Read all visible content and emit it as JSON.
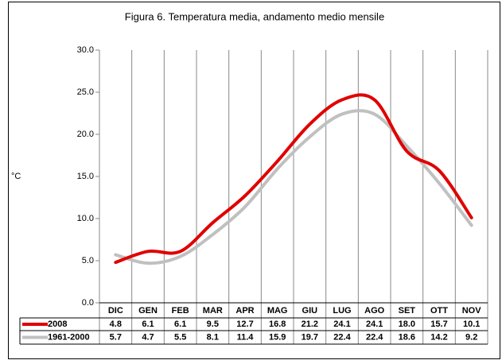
{
  "chart_data": {
    "type": "line",
    "title": "Figura 6. Temperatura media, andamento medio mensile",
    "y_label": "°C",
    "categories": [
      "DIC",
      "GEN",
      "FEB",
      "MAR",
      "APR",
      "MAG",
      "GIU",
      "LUG",
      "AGO",
      "SET",
      "OTT",
      "NOV"
    ],
    "series": [
      {
        "name": "2008",
        "color": "#e00000",
        "values": [
          4.8,
          6.1,
          6.1,
          9.5,
          12.7,
          16.8,
          21.2,
          24.1,
          24.1,
          18.0,
          15.7,
          10.1
        ],
        "value_labels": [
          "4.8",
          "6.1",
          "6.1",
          "9.5",
          "12.7",
          "16.8",
          "21.2",
          "24.1",
          "24.1",
          "18.0",
          "15.7",
          "10.1"
        ]
      },
      {
        "name": "1961-2000",
        "color": "#c0c0c0",
        "values": [
          5.7,
          4.7,
          5.5,
          8.1,
          11.4,
          15.9,
          19.7,
          22.4,
          22.4,
          18.6,
          14.2,
          9.2
        ]
      }
    ],
    "ylim": [
      0,
      30
    ],
    "yticks": [
      {
        "value": 0,
        "label": "0.0"
      },
      {
        "value": 5,
        "label": "5.0"
      },
      {
        "value": 10,
        "label": "10.0"
      },
      {
        "value": 15,
        "label": "15.0"
      },
      {
        "value": 20,
        "label": "20.0"
      },
      {
        "value": 25,
        "label": "25.0"
      },
      {
        "value": 30,
        "label": "30.0"
      }
    ],
    "smooth": true
  }
}
